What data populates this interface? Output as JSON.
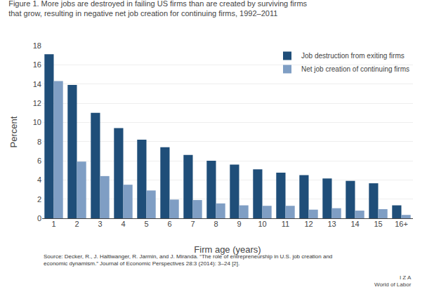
{
  "chart_data": {
    "type": "bar",
    "title": "Figure 1. More jobs are destroyed in failing US firms than are created by surviving firms\nthat grow, resulting in negative net job creation for continuing firms, 1992–2011",
    "categories": [
      "1",
      "2",
      "3",
      "4",
      "5",
      "6",
      "7",
      "8",
      "9",
      "10",
      "11",
      "12",
      "13",
      "14",
      "15",
      "16+"
    ],
    "series": [
      {
        "name": "Job destruction from exiting firms",
        "color": "#1F4E79",
        "values": [
          17.1,
          13.9,
          11.0,
          9.4,
          8.2,
          7.4,
          6.6,
          6.0,
          5.6,
          5.1,
          4.75,
          4.5,
          4.15,
          3.9,
          3.65,
          1.35
        ]
      },
      {
        "name": "Net job creation of continuing firms",
        "color": "#7F9EC4",
        "values": [
          14.3,
          5.9,
          4.4,
          3.5,
          2.9,
          1.95,
          1.9,
          1.55,
          1.35,
          1.3,
          1.3,
          0.9,
          1.05,
          0.8,
          0.95,
          0.35
        ]
      }
    ],
    "xlabel": "Firm age (years)",
    "ylabel": "Percent",
    "ylim": [
      0,
      18
    ],
    "yticks": [
      0,
      2,
      4,
      6,
      8,
      10,
      12,
      14,
      16,
      18
    ],
    "grid": true,
    "legend": "upper right",
    "annotations": [
      "Source: Decker, R., J. Haltiwanger, R. Jarmin, and J. Miranda. “The role of entrepreneurship in U.S. job creation and\neconomic dynamism.” Journal of Economic Perspectives 28:3 (2014): 3–24 [2].",
      "I Z A\nWorld of Labor"
    ]
  }
}
